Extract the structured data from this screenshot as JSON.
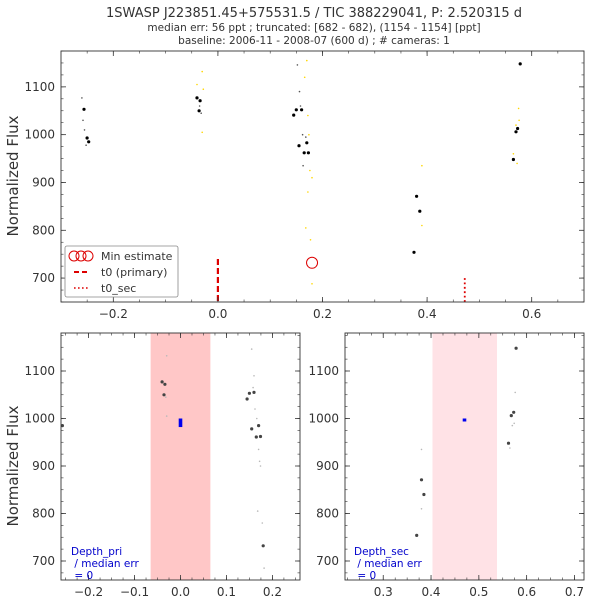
{
  "title": {
    "line1": "1SWASP J223851.45+575531.5 / TIC 388229041, P: 2.520315 d",
    "line2": "median err: 56 ppt ; truncated: [682 - 682), (1154 - 1154] [ppt]",
    "line3": "baseline: 2006-11 - 2008-07 (600 d)  ;  # cameras: 1"
  },
  "colors": {
    "data_black": "#000000",
    "data_yellow": "#ffd700",
    "data_gray": "#8a8a8a",
    "t0_red": "#dd0000",
    "primary_span": "#ff9999",
    "secondary_span": "#ffcfd6",
    "depth_blue": "#0000ee"
  },
  "chart_data": [
    {
      "id": "main",
      "type": "scatter",
      "ylabel": "Normalized Flux",
      "xlim": [
        -0.3,
        0.7
      ],
      "ylim": [
        650,
        1175
      ],
      "xticks": [
        -0.2,
        0.0,
        0.2,
        0.4,
        0.6
      ],
      "xtick_labels": [
        "−0.2",
        "0.0",
        "0.2",
        "0.4",
        "0.6"
      ],
      "yticks": [
        700,
        800,
        900,
        1000,
        1100
      ],
      "ytick_labels": [
        "700",
        "800",
        "900",
        "1000",
        "1100"
      ],
      "series": [
        {
          "role": "binned",
          "color": "#000000",
          "points": [
            [
              -0.256,
              1053
            ],
            [
              -0.25,
              993
            ],
            [
              -0.247,
              985
            ],
            [
              -0.04,
              1077
            ],
            [
              -0.034,
              1071
            ],
            [
              -0.036,
              1050
            ],
            [
              0.145,
              1041
            ],
            [
              0.15,
              1052
            ],
            [
              0.16,
              1052
            ],
            [
              0.155,
              977
            ],
            [
              0.165,
              962
            ],
            [
              0.17,
              983
            ],
            [
              0.173,
              962
            ],
            [
              0.375,
              754
            ],
            [
              0.38,
              871
            ],
            [
              0.386,
              840
            ],
            [
              0.565,
              948
            ],
            [
              0.57,
              1006
            ],
            [
              0.573,
              1013
            ],
            [
              0.578,
              1148
            ]
          ]
        },
        {
          "role": "raw",
          "color": "#ffd700",
          "points": [
            [
              -0.04,
              1105
            ],
            [
              -0.03,
              1132
            ],
            [
              -0.028,
              1095
            ],
            [
              -0.03,
              1005
            ],
            [
              0.166,
              1120
            ],
            [
              0.17,
              1155
            ],
            [
              0.172,
              1040
            ],
            [
              0.174,
              1000
            ],
            [
              0.176,
              925
            ],
            [
              0.172,
              880
            ],
            [
              0.18,
              910
            ],
            [
              0.168,
              805
            ],
            [
              0.177,
              780
            ],
            [
              0.18,
              688
            ],
            [
              0.39,
              935
            ],
            [
              0.39,
              810
            ],
            [
              0.565,
              960
            ],
            [
              0.57,
              1020
            ],
            [
              0.575,
              1055
            ],
            [
              0.572,
              940
            ],
            [
              0.576,
              1030
            ]
          ]
        },
        {
          "role": "raw",
          "color": "#555555",
          "points": [
            [
              -0.26,
              1077
            ],
            [
              -0.258,
              1030
            ],
            [
              -0.255,
              1010
            ],
            [
              -0.252,
              978
            ],
            [
              -0.035,
              1060
            ],
            [
              -0.032,
              1045
            ],
            [
              0.152,
              1146
            ],
            [
              0.156,
              1090
            ],
            [
              0.158,
              1060
            ],
            [
              0.162,
              1000
            ],
            [
              0.163,
              935
            ],
            [
              0.168,
              995
            ]
          ]
        }
      ],
      "marked_point": [
        0.18,
        732
      ],
      "t0_primary": 0.0,
      "t0_secondary": 0.472,
      "legend": {
        "placement": "lower-left",
        "items": [
          "Min estimate",
          "t0 (primary)",
          "t0_sec"
        ]
      }
    },
    {
      "id": "primary_zoom",
      "type": "scatter",
      "ylabel": "Normalized Flux",
      "xlim": [
        -0.26,
        0.26
      ],
      "ylim": [
        660,
        1180
      ],
      "xticks": [
        -0.2,
        -0.1,
        0.0,
        0.1,
        0.2
      ],
      "xtick_labels": [
        "−0.2",
        "−0.1",
        "0.0",
        "0.1",
        "0.2"
      ],
      "yticks": [
        700,
        800,
        900,
        1000,
        1100
      ],
      "ytick_labels": [
        "700",
        "800",
        "900",
        "1000",
        "1100"
      ],
      "span": [
        -0.065,
        0.065
      ],
      "depth_marker": {
        "x": 0.0,
        "ylow": 982,
        "yhigh": 1000
      },
      "series": [
        {
          "role": "binned",
          "color": "#444444",
          "points": [
            [
              -0.257,
              985
            ],
            [
              -0.04,
              1077
            ],
            [
              -0.034,
              1072
            ],
            [
              -0.036,
              1050
            ],
            [
              0.145,
              1041
            ],
            [
              0.15,
              1053
            ],
            [
              0.16,
              1055
            ],
            [
              0.155,
              978
            ],
            [
              0.165,
              961
            ],
            [
              0.17,
              985
            ],
            [
              0.174,
              962
            ],
            [
              0.18,
              732
            ]
          ]
        },
        {
          "role": "raw",
          "color": "#b8b8b8",
          "points": [
            [
              -0.03,
              1132
            ],
            [
              -0.03,
              1005
            ],
            [
              -0.032,
              1045
            ],
            [
              0.155,
              1146
            ],
            [
              0.16,
              1090
            ],
            [
              0.162,
              1020
            ],
            [
              0.166,
              1000
            ],
            [
              0.17,
              935
            ],
            [
              0.172,
              910
            ],
            [
              0.174,
              900
            ],
            [
              0.168,
              805
            ],
            [
              0.178,
              780
            ],
            [
              0.182,
              685
            ],
            [
              0.158,
              1065
            ]
          ]
        }
      ],
      "annotation": {
        "line1": "Depth_pri",
        "line2": " / median err",
        "line3": " = 0"
      }
    },
    {
      "id": "secondary_zoom",
      "type": "scatter",
      "ylabel": "",
      "xlim": [
        0.22,
        0.72
      ],
      "ylim": [
        660,
        1180
      ],
      "xticks": [
        0.3,
        0.4,
        0.5,
        0.6,
        0.7
      ],
      "xtick_labels": [
        "0.3",
        "0.4",
        "0.5",
        "0.6",
        "0.7"
      ],
      "yticks": [
        700,
        800,
        900,
        1000,
        1100
      ],
      "ytick_labels": [
        "700",
        "800",
        "900",
        "1000",
        "1100"
      ],
      "span": [
        0.403,
        0.538
      ],
      "depth_marker": {
        "x": 0.47,
        "ylow": 994,
        "yhigh": 1000
      },
      "series": [
        {
          "role": "binned",
          "color": "#444444",
          "points": [
            [
              0.37,
              754
            ],
            [
              0.38,
              871
            ],
            [
              0.385,
              840
            ],
            [
              0.562,
              948
            ],
            [
              0.568,
              1006
            ],
            [
              0.573,
              1013
            ],
            [
              0.578,
              1148
            ]
          ]
        },
        {
          "role": "raw",
          "color": "#b8b8b8",
          "points": [
            [
              0.38,
              935
            ],
            [
              0.38,
              810
            ],
            [
              0.565,
              938
            ],
            [
              0.57,
              985
            ],
            [
              0.576,
              1055
            ],
            [
              0.574,
              990
            ]
          ]
        }
      ],
      "annotation": {
        "line1": "Depth_sec",
        "line2": " / median err",
        "line3": " = 0"
      }
    }
  ]
}
